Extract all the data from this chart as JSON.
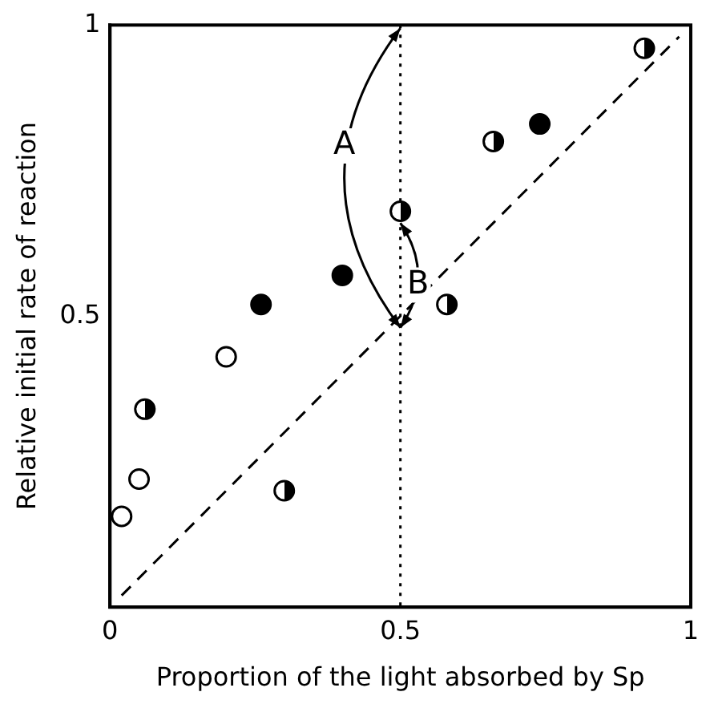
{
  "chart_data": {
    "type": "scatter",
    "xlabel": "Proportion of the light absorbed by Sp",
    "ylabel": "Relative initial rate of reaction",
    "xlim": [
      0,
      1
    ],
    "ylim": [
      0,
      1
    ],
    "xticks": [
      0,
      0.5,
      1
    ],
    "yticks": [
      0.5,
      1
    ],
    "grid": false,
    "legend": false,
    "marker": "circle",
    "series": [
      {
        "color": "#000000",
        "x": [
          0.02,
          0.05,
          0.2
        ],
        "values": [
          0.156,
          0.22,
          0.43
        ]
      },
      {
        "color": "#000000",
        "x": [
          0.26,
          0.4,
          0.74
        ],
        "values": [
          0.52,
          0.57,
          0.83
        ]
      },
      {
        "color": "#000000",
        "x": [
          0.06,
          0.3,
          0.5,
          0.58,
          0.66,
          0.92
        ],
        "values": [
          0.34,
          0.2,
          0.68,
          0.52,
          0.8,
          0.96
        ]
      },
      {
        "type": "line",
        "marker": "none",
        "line_style": "dashed",
        "color": "#000000",
        "x": [
          0.02,
          0.98
        ],
        "values": [
          0.02,
          0.98
        ]
      }
    ],
    "ref_lines": [
      {
        "axis": "x",
        "value": 0.5,
        "line_style": "dotted",
        "color": "#000000"
      }
    ],
    "annotations": [
      "A",
      "B"
    ]
  }
}
